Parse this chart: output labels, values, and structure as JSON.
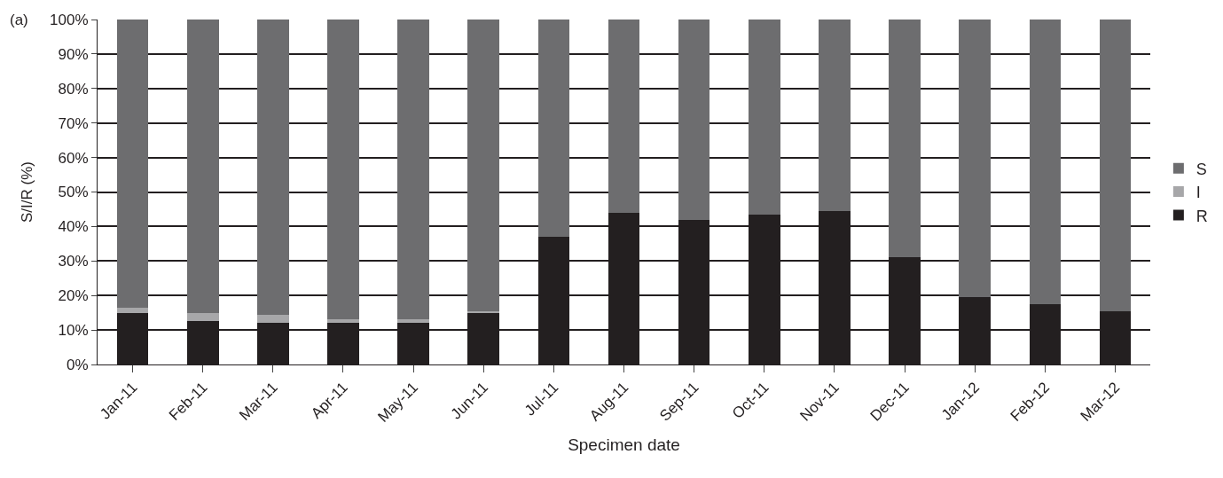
{
  "chart_data": {
    "type": "bar",
    "stacked": true,
    "xlabel": "Specimen date",
    "ylabel": "S/I/R (%)",
    "annotations": [
      "(a)"
    ],
    "categories": [
      "Jan-11",
      "Feb-11",
      "Mar-11",
      "Apr-11",
      "May-11",
      "Jun-11",
      "Jul-11",
      "Aug-11",
      "Sep-11",
      "Oct-11",
      "Nov-11",
      "Dec-11",
      "Jan-12",
      "Feb-12",
      "Mar-12"
    ],
    "series": [
      {
        "name": "R",
        "color": "#231f20",
        "values": [
          15,
          12.5,
          12,
          12,
          12,
          15,
          37,
          44,
          42,
          43.5,
          44.5,
          31,
          19.5,
          17.5,
          15.5
        ]
      },
      {
        "name": "I",
        "color": "#a7a7a9",
        "values": [
          1.5,
          2.5,
          2.5,
          1,
          1,
          0.5,
          0,
          0,
          0,
          0,
          0,
          0,
          0,
          0,
          0
        ]
      },
      {
        "name": "S",
        "color": "#6d6d6f",
        "values": [
          83.5,
          85,
          85.5,
          87,
          87,
          84.5,
          63,
          56,
          58,
          56.5,
          55.5,
          69,
          80.5,
          82.5,
          84.5
        ]
      }
    ],
    "ylim": [
      0,
      100
    ],
    "yticks": [
      {
        "value": 0,
        "label": "0%"
      },
      {
        "value": 10,
        "label": "10%"
      },
      {
        "value": 20,
        "label": "20%"
      },
      {
        "value": 30,
        "label": "30%"
      },
      {
        "value": 40,
        "label": "40%"
      },
      {
        "value": 50,
        "label": "50%"
      },
      {
        "value": 60,
        "label": "60%"
      },
      {
        "value": 70,
        "label": "70%"
      },
      {
        "value": 80,
        "label": "80%"
      },
      {
        "value": 90,
        "label": "90%"
      },
      {
        "value": 100,
        "label": "100%"
      }
    ],
    "grid": "y",
    "legend": "right"
  }
}
